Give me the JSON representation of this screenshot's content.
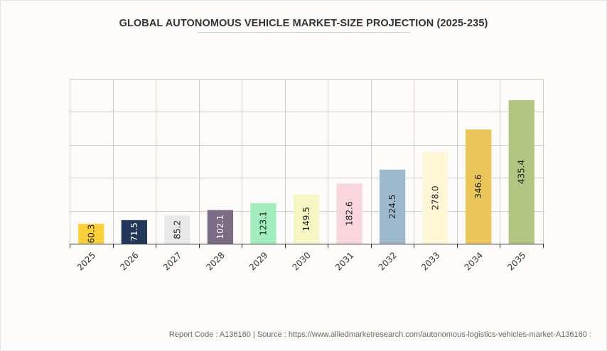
{
  "chart_data": {
    "type": "bar",
    "title": "GLOBAL AUTONOMOUS VEHICLE MARKET-SIZE PROJECTION (2025-235)",
    "xlabel": "",
    "ylabel": "",
    "categories": [
      "2025",
      "2026",
      "2027",
      "2028",
      "2029",
      "2030",
      "2031",
      "2032",
      "2033",
      "2034",
      "2035"
    ],
    "values": [
      60.3,
      71.5,
      85.2,
      102.1,
      123.1,
      149.5,
      182.6,
      224.5,
      278.0,
      346.6,
      435.4
    ],
    "data_labels": [
      "60.3",
      "71.5",
      "85.2",
      "102.1",
      "123.1",
      "149.5",
      "182.6",
      "224.5",
      "278.0",
      "346.6",
      "435.4"
    ],
    "colors": [
      "#fdd03b",
      "#22375a",
      "#e8e8e8",
      "#7b6b85",
      "#a1edbe",
      "#f5f6c3",
      "#f8d6db",
      "#9db9ce",
      "#fff6d6",
      "#ecc55a",
      "#b2c682"
    ],
    "ylim": [
      0,
      500
    ],
    "ytick_step": 100,
    "y_tick_labels_visible": false,
    "grid": true,
    "legend": "none"
  },
  "footer": {
    "text": "Report Code : A136160  |  Source : https://www.alliedmarketresearch.com/autonomous-logistics-vehicles-market-A136160 :"
  }
}
